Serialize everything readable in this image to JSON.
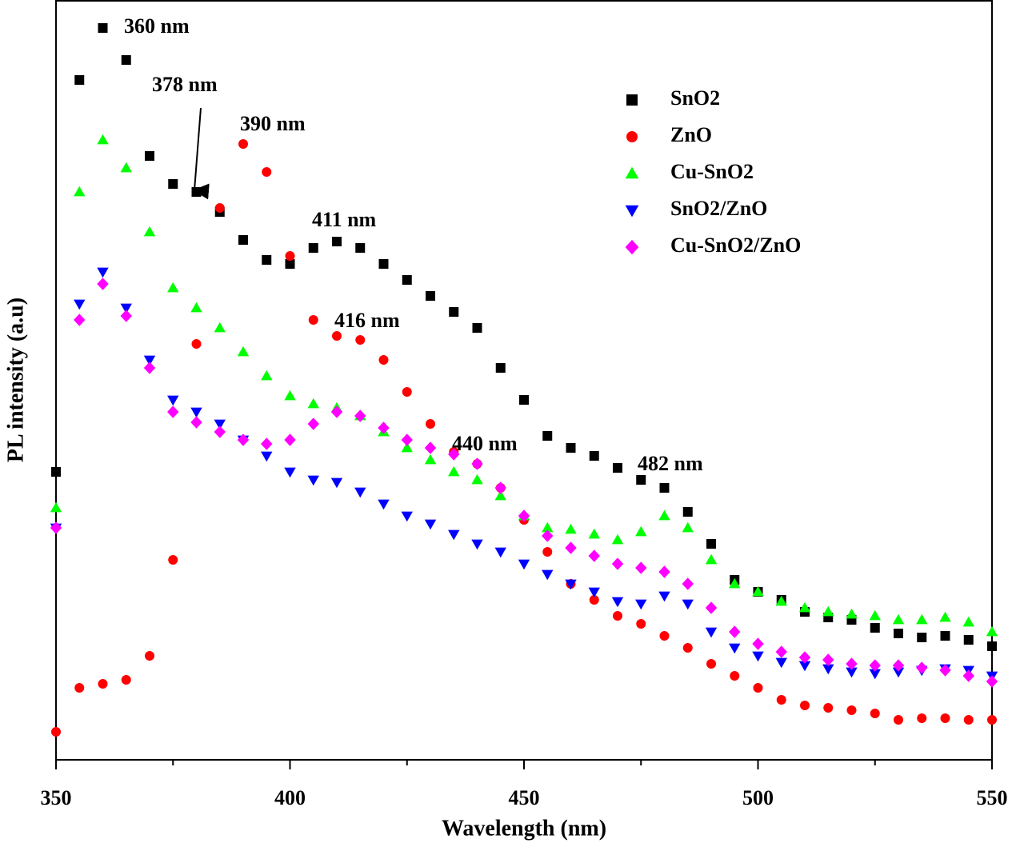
{
  "chart_data": {
    "type": "scatter",
    "xlabel": "Wavelength (nm)",
    "ylabel": "PL intensity (a.u)",
    "x": [
      350,
      355,
      360,
      365,
      370,
      375,
      380,
      385,
      390,
      395,
      400,
      405,
      410,
      415,
      420,
      425,
      430,
      435,
      440,
      445,
      450,
      455,
      460,
      465,
      470,
      475,
      480,
      485,
      490,
      495,
      500,
      505,
      510,
      515,
      520,
      525,
      530,
      535,
      540,
      545,
      550
    ],
    "xlim": [
      350,
      550
    ],
    "xticks": [
      350,
      400,
      450,
      500,
      550
    ],
    "xminor_ticks": [
      375,
      425,
      475,
      525
    ],
    "ylim": [
      0,
      950
    ],
    "legend": "upper right",
    "series": [
      {
        "name": "SnO2",
        "color": "#000000",
        "marker": "square",
        "values": [
          360,
          850,
          915,
          875,
          755,
          720,
          710,
          685,
          650,
          625,
          620,
          640,
          648,
          640,
          620,
          600,
          580,
          560,
          540,
          490,
          450,
          405,
          390,
          380,
          365,
          350,
          340,
          310,
          270,
          225,
          210,
          200,
          185,
          178,
          175,
          165,
          158,
          153,
          155,
          150,
          142
        ]
      },
      {
        "name": "ZnO",
        "color": "#ff0000",
        "marker": "circle",
        "values": [
          35,
          90,
          95,
          100,
          130,
          250,
          520,
          690,
          770,
          735,
          630,
          550,
          530,
          525,
          500,
          460,
          420,
          385,
          370,
          340,
          300,
          260,
          220,
          200,
          180,
          170,
          155,
          140,
          120,
          105,
          90,
          75,
          68,
          65,
          62,
          58,
          50,
          52,
          52,
          50,
          50
        ]
      },
      {
        "name": "Cu-SnO2",
        "color": "#00ff00",
        "marker": "triangle-up",
        "values": [
          315,
          710,
          775,
          740,
          660,
          590,
          565,
          540,
          510,
          480,
          455,
          445,
          440,
          430,
          410,
          390,
          375,
          360,
          350,
          330,
          305,
          290,
          288,
          282,
          275,
          285,
          305,
          290,
          250,
          220,
          210,
          198,
          190,
          185,
          182,
          180,
          175,
          175,
          178,
          172,
          160
        ]
      },
      {
        "name": "SnO2/ZnO",
        "color": "#0000ff",
        "marker": "triangle-down",
        "values": [
          290,
          570,
          610,
          565,
          500,
          450,
          435,
          420,
          400,
          380,
          360,
          350,
          347,
          335,
          320,
          305,
          295,
          282,
          270,
          260,
          245,
          232,
          220,
          210,
          198,
          195,
          205,
          195,
          160,
          140,
          130,
          122,
          118,
          114,
          110,
          108,
          110,
          112,
          114,
          112,
          105
        ]
      },
      {
        "name": "Cu-SnO2/ZnO",
        "color": "#ff00ff",
        "marker": "diamond",
        "values": [
          290,
          550,
          595,
          555,
          490,
          435,
          422,
          410,
          400,
          395,
          400,
          420,
          435,
          430,
          415,
          400,
          390,
          382,
          370,
          340,
          305,
          280,
          265,
          255,
          245,
          240,
          235,
          220,
          190,
          160,
          145,
          135,
          128,
          125,
          120,
          118,
          118,
          115,
          112,
          105,
          98
        ]
      }
    ],
    "annotations": [
      "360 nm",
      "378 nm",
      "390 nm",
      "411 nm",
      "416 nm",
      "440 nm",
      "482 nm"
    ]
  }
}
